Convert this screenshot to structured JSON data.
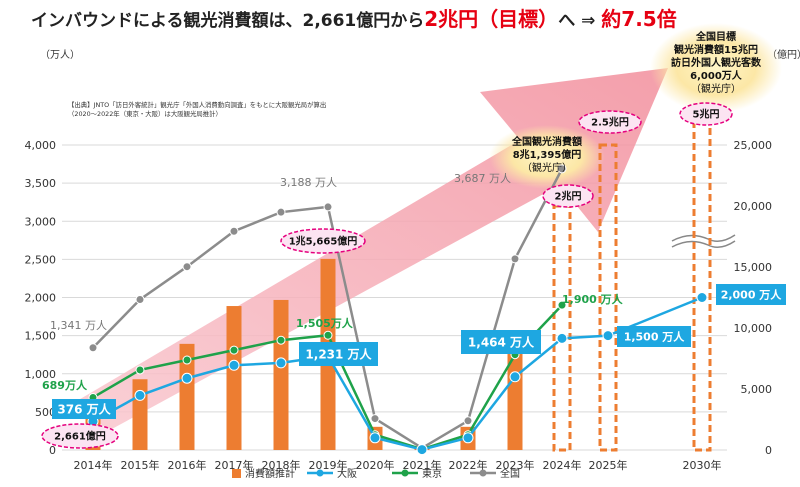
{
  "title": {
    "part1": "インバウンドによる観光消費額は、2,661億円から",
    "part2": "2兆円（目標）",
    "part3": "へ ⇒ ",
    "part4": "約7.5倍"
  },
  "source_note": {
    "line1": "【出典】JNTO「訪日外客統計」観光庁「外国人消費動向調査」をもとに大阪観光局が算出",
    "line2": "（2020～2022年（東京・大阪）は大阪観光局推計）"
  },
  "colors": {
    "bar": "#ED7D31",
    "osaka": "#1EA7E1",
    "tokyo": "#1FA24A",
    "zenkoku": "#8C8C8C",
    "arrow": "#F5A3AE",
    "magenta": "#E5007E",
    "title_red": "#E60012"
  },
  "chart_data": {
    "type": "bar+line",
    "categories": [
      "2014年",
      "2015年",
      "2016年",
      "2017年",
      "2018年",
      "2019年",
      "2020年",
      "2021年",
      "2022年",
      "2023年",
      "2024年",
      "2025年",
      "2030年"
    ],
    "y_left": {
      "label": "（万人）",
      "range": [
        0,
        4000
      ],
      "ticks": [
        "0",
        "500",
        "1,000",
        "1,500",
        "2,000",
        "2,500",
        "3,000",
        "3,500",
        "4,000"
      ]
    },
    "y_right": {
      "label": "（億円）",
      "range": [
        0,
        25000
      ],
      "ticks": [
        "0",
        "5,000",
        "10,000",
        "15,000",
        "20,000",
        "25,000"
      ],
      "broken": true
    },
    "bars": {
      "name": "消費額推計",
      "values": [
        2661,
        5800,
        8700,
        11800,
        12300,
        15665,
        1900,
        200,
        1900,
        8000,
        null,
        null,
        null
      ]
    },
    "target_bars": [
      {
        "x": "2024年",
        "value": 20000
      },
      {
        "x": "2025年",
        "value": 25000
      },
      {
        "x": "2030年",
        "value": 50000
      }
    ],
    "series": [
      {
        "name": "大阪",
        "values": [
          376,
          716,
          941,
          1111,
          1142,
          1231,
          160,
          5,
          160,
          960,
          1464,
          1500,
          2000
        ]
      },
      {
        "name": "東京",
        "values": [
          689,
          1050,
          1180,
          1310,
          1440,
          1505,
          200,
          10,
          200,
          1250,
          1900,
          null,
          null
        ]
      },
      {
        "name": "全国",
        "values": [
          1341,
          1974,
          2404,
          2869,
          3119,
          3188,
          412,
          25,
          383,
          2507,
          3687,
          null,
          null
        ]
      }
    ],
    "legend": [
      "消費額推計",
      "大阪",
      "東京",
      "全国"
    ],
    "annotations": {
      "bar2014": "2,661億円",
      "bar2019": "1兆5,665億円",
      "zenkoku2014": "1,341 万人",
      "zenkoku2019": "3,188 万人",
      "zenkoku2024": "3,687 万人",
      "tokyo2014": "689万人",
      "tokyo2019": "1,505万人",
      "tokyo2024": "1,900 万人",
      "osaka2014": "376 万人",
      "osaka2019": "1,231 万人",
      "osaka2024": "1,464 万人",
      "osaka2025": "1,500 万人",
      "osaka2030": "2,000 万人",
      "t2024": "2兆円",
      "t2025": "2.5兆円",
      "t2030": "5兆円",
      "national_line1": "全国観光消費額",
      "national_line2": "8兆1,395億円",
      "national_line3": "（観光庁）",
      "target_line1": "全国目標",
      "target_line2": "観光消費額15兆円",
      "target_line3": "訪日外国人観光客数",
      "target_line4": "6,000万人",
      "target_line5": "（観光庁）"
    }
  }
}
